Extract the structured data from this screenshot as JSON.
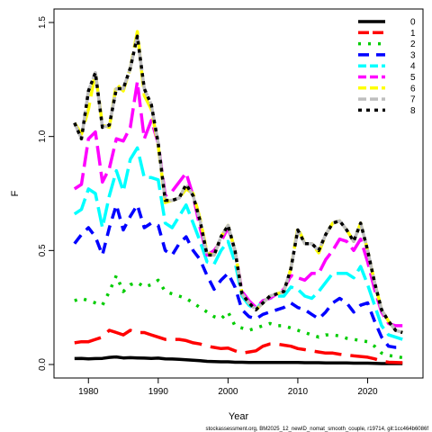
{
  "chart_data": {
    "type": "line",
    "title": "",
    "xlabel": "Year",
    "ylabel": "F",
    "xlim": [
      1977,
      2026
    ],
    "ylim": [
      0,
      1.5
    ],
    "x_ticks": [
      1980,
      1990,
      2000,
      2010,
      2020
    ],
    "y_ticks": [
      0.0,
      0.5,
      1.0,
      1.5
    ],
    "y_tick_labels": [
      "0.0",
      "0.5",
      "1.0",
      "1.5"
    ],
    "grid": false,
    "legend_position": "top-right",
    "x": [
      1978,
      1979,
      1980,
      1981,
      1982,
      1983,
      1984,
      1985,
      1986,
      1987,
      1988,
      1989,
      1990,
      1991,
      1992,
      1993,
      1994,
      1995,
      1996,
      1997,
      1998,
      1999,
      2000,
      2001,
      2002,
      2003,
      2004,
      2005,
      2006,
      2007,
      2008,
      2009,
      2010,
      2011,
      2012,
      2013,
      2014,
      2015,
      2016,
      2017,
      2018,
      2019,
      2020,
      2021,
      2022,
      2023,
      2024,
      2025
    ],
    "series": [
      {
        "name": "0",
        "color": "#000000",
        "dash": "solid",
        "values": [
          0.026,
          0.027,
          0.025,
          0.026,
          0.027,
          0.031,
          0.033,
          0.029,
          0.03,
          0.029,
          0.028,
          0.027,
          0.028,
          0.025,
          0.024,
          0.023,
          0.021,
          0.019,
          0.017,
          0.014,
          0.013,
          0.012,
          0.012,
          0.01,
          0.01,
          0.009,
          0.009,
          0.009,
          0.009,
          0.009,
          0.009,
          0.009,
          0.009,
          0.008,
          0.008,
          0.008,
          0.007,
          0.007,
          0.007,
          0.007,
          0.006,
          0.006,
          0.006,
          0.005,
          0.004,
          0.004,
          0.004,
          0.004
        ]
      },
      {
        "name": "1",
        "color": "#ff0000",
        "dash": "30 10",
        "values": [
          0.095,
          0.1,
          0.1,
          0.11,
          0.12,
          0.15,
          0.14,
          0.13,
          0.15,
          0.14,
          0.14,
          0.13,
          0.12,
          0.11,
          0.11,
          0.11,
          0.105,
          0.095,
          0.09,
          0.08,
          0.075,
          0.07,
          0.072,
          0.06,
          0.05,
          0.055,
          0.06,
          0.08,
          0.09,
          0.09,
          0.085,
          0.08,
          0.07,
          0.065,
          0.06,
          0.055,
          0.05,
          0.05,
          0.045,
          0.042,
          0.038,
          0.035,
          0.032,
          0.025,
          0.015,
          0.01,
          0.009,
          0.008
        ]
      },
      {
        "name": "2",
        "color": "#00cc00",
        "dash": "3 8",
        "values": [
          0.28,
          0.29,
          0.28,
          0.27,
          0.26,
          0.32,
          0.39,
          0.32,
          0.35,
          0.36,
          0.34,
          0.35,
          0.37,
          0.32,
          0.31,
          0.3,
          0.29,
          0.27,
          0.25,
          0.23,
          0.21,
          0.2,
          0.23,
          0.17,
          0.16,
          0.15,
          0.16,
          0.17,
          0.18,
          0.17,
          0.17,
          0.16,
          0.15,
          0.14,
          0.13,
          0.12,
          0.13,
          0.13,
          0.125,
          0.115,
          0.11,
          0.105,
          0.1,
          0.08,
          0.05,
          0.04,
          0.035,
          0.03
        ]
      },
      {
        "name": "3",
        "color": "#0000ff",
        "dash": "12 8",
        "values": [
          0.53,
          0.57,
          0.6,
          0.56,
          0.48,
          0.6,
          0.7,
          0.59,
          0.65,
          0.7,
          0.6,
          0.62,
          0.61,
          0.5,
          0.48,
          0.53,
          0.56,
          0.5,
          0.46,
          0.39,
          0.33,
          0.37,
          0.4,
          0.34,
          0.24,
          0.21,
          0.2,
          0.22,
          0.23,
          0.24,
          0.25,
          0.27,
          0.25,
          0.24,
          0.22,
          0.2,
          0.23,
          0.27,
          0.29,
          0.27,
          0.23,
          0.26,
          0.27,
          0.19,
          0.12,
          0.08,
          0.075,
          0.075
        ]
      },
      {
        "name": "4",
        "color": "#00ffff",
        "dash": "22 7",
        "values": [
          0.66,
          0.68,
          0.77,
          0.75,
          0.6,
          0.74,
          0.85,
          0.76,
          0.9,
          0.95,
          0.82,
          0.82,
          0.81,
          0.62,
          0.6,
          0.65,
          0.7,
          0.62,
          0.54,
          0.45,
          0.44,
          0.5,
          0.54,
          0.45,
          0.3,
          0.26,
          0.24,
          0.28,
          0.29,
          0.3,
          0.3,
          0.34,
          0.33,
          0.3,
          0.29,
          0.32,
          0.36,
          0.4,
          0.4,
          0.4,
          0.38,
          0.43,
          0.35,
          0.26,
          0.17,
          0.13,
          0.12,
          0.11
        ]
      },
      {
        "name": "5",
        "color": "#ff00ff",
        "dash": "22 7",
        "values": [
          0.77,
          0.79,
          0.99,
          1.02,
          0.8,
          0.86,
          0.99,
          0.98,
          1.04,
          1.24,
          0.99,
          1.07,
          0.97,
          0.74,
          0.76,
          0.8,
          0.84,
          0.74,
          0.6,
          0.48,
          0.5,
          0.54,
          0.6,
          0.5,
          0.32,
          0.28,
          0.25,
          0.28,
          0.29,
          0.31,
          0.33,
          0.39,
          0.38,
          0.37,
          0.4,
          0.4,
          0.46,
          0.5,
          0.55,
          0.54,
          0.5,
          0.55,
          0.45,
          0.33,
          0.23,
          0.18,
          0.17,
          0.17
        ]
      },
      {
        "name": "6",
        "color": "#ffff00",
        "dash": "22 7",
        "values": [
          1.06,
          1.01,
          1.12,
          1.28,
          1.05,
          1.04,
          1.23,
          1.2,
          1.3,
          1.46,
          1.18,
          1.12,
          0.96,
          0.71,
          0.72,
          0.73,
          0.77,
          0.75,
          0.64,
          0.49,
          0.48,
          0.56,
          0.61,
          0.5,
          0.31,
          0.27,
          0.24,
          0.27,
          0.3,
          0.31,
          0.32,
          0.42,
          0.6,
          0.53,
          0.53,
          0.49,
          0.57,
          0.62,
          0.63,
          0.59,
          0.54,
          0.62,
          0.5,
          0.36,
          0.24,
          0.19,
          0.15,
          0.14
        ]
      },
      {
        "name": "7",
        "color": "#bebebe",
        "dash": "22 7",
        "values": [
          1.06,
          0.99,
          1.2,
          1.28,
          1.04,
          1.05,
          1.21,
          1.21,
          1.3,
          1.44,
          1.21,
          1.14,
          0.97,
          0.72,
          0.72,
          0.73,
          0.79,
          0.74,
          0.63,
          0.48,
          0.48,
          0.56,
          0.61,
          0.5,
          0.31,
          0.27,
          0.24,
          0.27,
          0.3,
          0.31,
          0.32,
          0.42,
          0.59,
          0.53,
          0.53,
          0.5,
          0.57,
          0.62,
          0.63,
          0.59,
          0.54,
          0.62,
          0.5,
          0.36,
          0.24,
          0.19,
          0.15,
          0.14
        ]
      },
      {
        "name": "8",
        "color": "#000000",
        "dash": "4 5",
        "values": [
          1.06,
          0.99,
          1.2,
          1.28,
          1.04,
          1.05,
          1.21,
          1.21,
          1.3,
          1.44,
          1.21,
          1.14,
          0.97,
          0.72,
          0.72,
          0.73,
          0.79,
          0.74,
          0.63,
          0.48,
          0.48,
          0.56,
          0.61,
          0.5,
          0.31,
          0.27,
          0.24,
          0.27,
          0.3,
          0.31,
          0.32,
          0.42,
          0.59,
          0.53,
          0.53,
          0.5,
          0.57,
          0.62,
          0.63,
          0.59,
          0.54,
          0.62,
          0.5,
          0.36,
          0.24,
          0.19,
          0.15,
          0.14
        ]
      }
    ]
  },
  "footer": "stockassessment.org, BM2025_12_newID_nomat_smooth_couple, r19714, git:1cc464b6086f"
}
